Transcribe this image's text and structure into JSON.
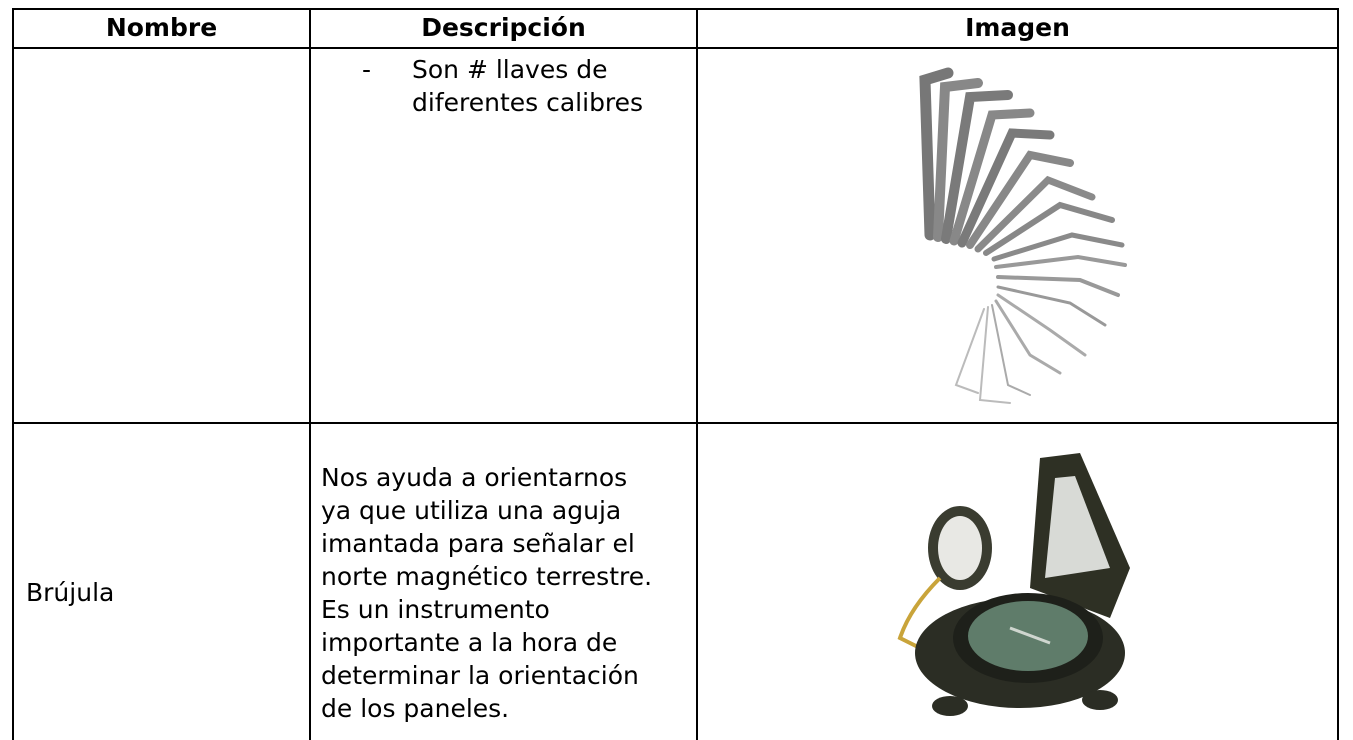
{
  "table": {
    "header": [
      "Nombre",
      "Descripción",
      "Imagen"
    ],
    "rows": [
      {
        "description": {
          "bullet": "-",
          "lines": [
            "Son # llaves de",
            "diferentes calibres"
          ]
        }
      },
      {
        "name": "Brújula",
        "description": {
          "lines": [
            "Nos ayuda a orientarnos",
            "ya que utiliza una aguja",
            "imantada para señalar el",
            "norte magnético terrestre.",
            "Es un instrumento",
            "importante a la hora de",
            "determinar la orientación",
            "de los paneles."
          ]
        }
      }
    ]
  }
}
